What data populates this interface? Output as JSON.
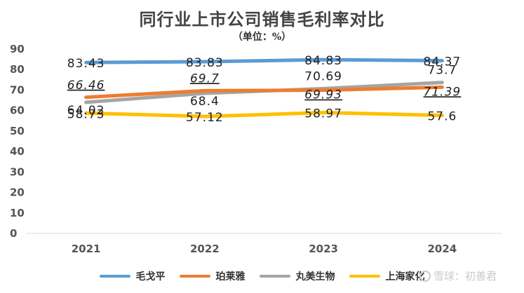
{
  "chart_data": {
    "type": "line",
    "title": "同行业上市公司销售毛利率对比",
    "subtitle": "（单位：%）",
    "categories": [
      "2021",
      "2022",
      "2023",
      "2024"
    ],
    "ylim": [
      0,
      90
    ],
    "yticks": [
      0,
      10,
      20,
      30,
      40,
      50,
      60,
      70,
      80,
      90
    ],
    "grid": false,
    "legend_position": "bottom",
    "series": [
      {
        "name": "毛戈平",
        "color": "#5B9BD5",
        "values": [
          83.43,
          83.83,
          84.83,
          84.37
        ],
        "labels": [
          "83.43",
          "83.83",
          "84.83",
          "84.37"
        ],
        "label_style": "normal"
      },
      {
        "name": "珀莱雅",
        "color": "#ED7D31",
        "values": [
          66.46,
          69.7,
          69.93,
          71.39
        ],
        "labels": [
          "66.46",
          "69.7",
          "69.93",
          "71.39"
        ],
        "label_style": "italic"
      },
      {
        "name": "丸美生物",
        "color": "#A5A5A5",
        "values": [
          64.02,
          68.4,
          70.69,
          73.7
        ],
        "labels": [
          "64.02",
          "68.4",
          "70.69",
          "73.7"
        ],
        "label_style": "normal"
      },
      {
        "name": "上海家化",
        "color": "#FFC000",
        "values": [
          58.73,
          57.12,
          58.97,
          57.6
        ],
        "labels": [
          "58.73",
          "57.12",
          "58.97",
          "57.6"
        ],
        "label_style": "normal"
      }
    ]
  },
  "watermark": {
    "text": "雪球：初善君",
    "icon": "snowball-icon"
  }
}
